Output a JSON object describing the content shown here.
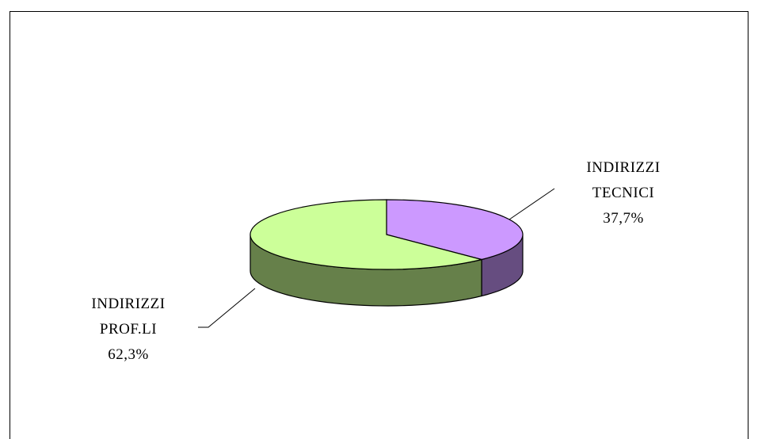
{
  "chart_data": {
    "type": "pie",
    "categories": [
      "INDIRIZZI TECNICI",
      "INDIRIZZI PROF.LI"
    ],
    "values": [
      37.7,
      62.3
    ],
    "value_labels": [
      "37,7%",
      "62,3%"
    ],
    "colors": [
      "#cc99ff",
      "#ccff99"
    ],
    "side_colors": [
      "#664d80",
      "#66804a"
    ]
  }
}
